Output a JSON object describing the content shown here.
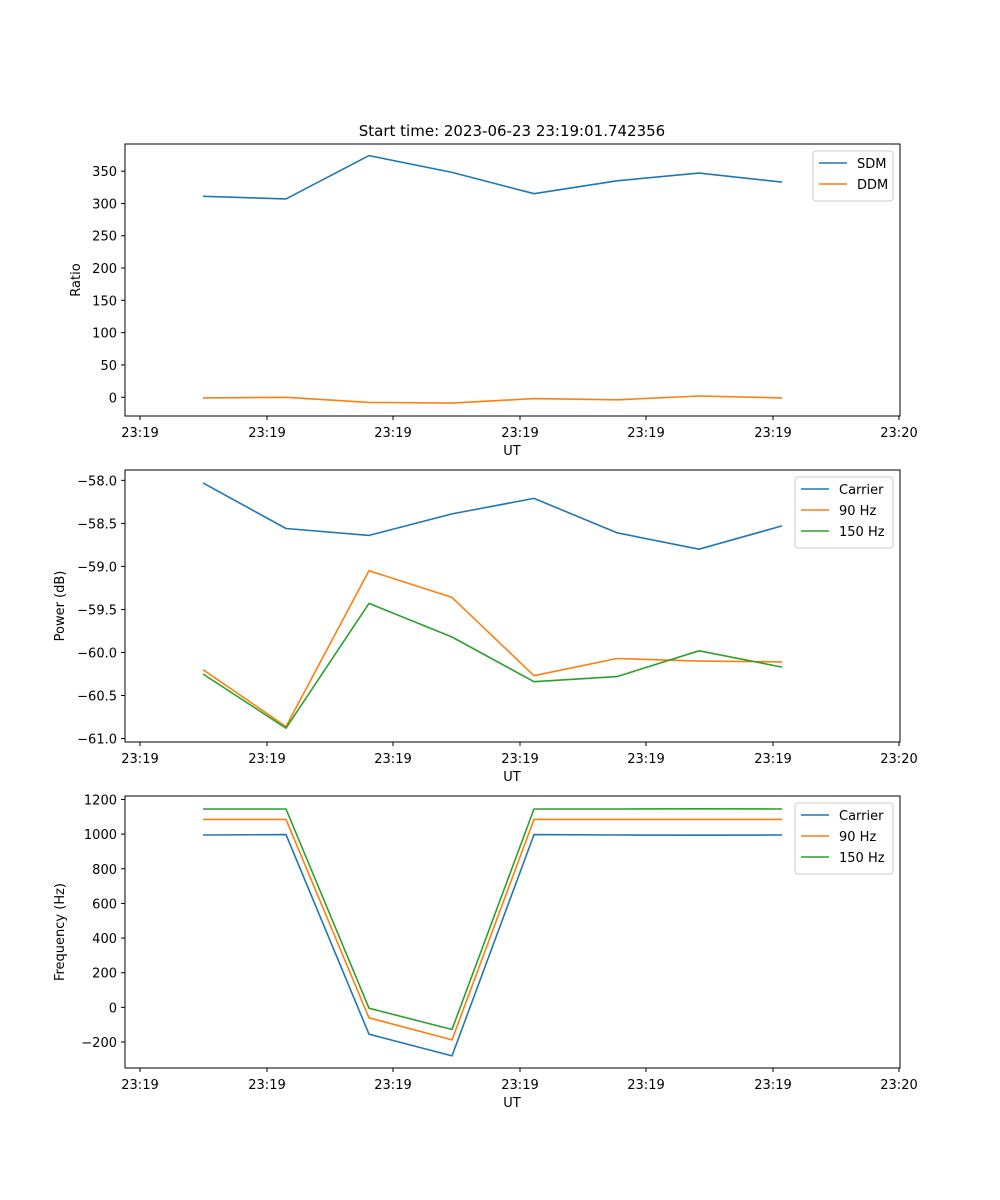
{
  "figure": {
    "title": "Start time: 2023-06-23 23:19:01.742356"
  },
  "chart_data": [
    {
      "type": "line",
      "xlabel": "UT",
      "ylabel": "Ratio",
      "x_ticks": [
        "23:19",
        "23:19",
        "23:19",
        "23:19",
        "23:19",
        "23:19",
        "23:20"
      ],
      "ylim": [
        -29,
        392
      ],
      "yticks": [
        0,
        50,
        100,
        150,
        200,
        250,
        300,
        350
      ],
      "legend": "top-right",
      "series": [
        {
          "name": "SDM",
          "color": "#1f77b4",
          "values": [
            311,
            307,
            374,
            348,
            315,
            335,
            347,
            333
          ]
        },
        {
          "name": "DDM",
          "color": "#ff7f0e",
          "values": [
            -1,
            0,
            -8,
            -9,
            -2,
            -4,
            2,
            -1
          ]
        }
      ]
    },
    {
      "type": "line",
      "xlabel": "UT",
      "ylabel": "Power (dB)",
      "x_ticks": [
        "23:19",
        "23:19",
        "23:19",
        "23:19",
        "23:19",
        "23:19",
        "23:20"
      ],
      "ylim": [
        -61.04,
        -57.88
      ],
      "yticks": [
        -61.0,
        -60.5,
        -60.0,
        -59.5,
        -59.0,
        -58.5,
        -58.0
      ],
      "ytick_labels": [
        "−61.0",
        "−60.5",
        "−60.0",
        "−59.5",
        "−59.0",
        "−58.5",
        "−58.0"
      ],
      "legend": "top-right",
      "series": [
        {
          "name": "Carrier",
          "color": "#1f77b4",
          "values": [
            -58.03,
            -58.56,
            -58.64,
            -58.39,
            -58.21,
            -58.61,
            -58.8,
            -58.53
          ]
        },
        {
          "name": "90 Hz",
          "color": "#ff7f0e",
          "values": [
            -60.2,
            -60.86,
            -59.05,
            -59.36,
            -60.27,
            -60.07,
            -60.1,
            -60.11
          ]
        },
        {
          "name": "150 Hz",
          "color": "#2ca02c",
          "values": [
            -60.25,
            -60.88,
            -59.43,
            -59.82,
            -60.34,
            -60.28,
            -59.98,
            -60.17
          ]
        }
      ]
    },
    {
      "type": "line",
      "xlabel": "UT",
      "ylabel": "Frequency (Hz)",
      "x_ticks": [
        "23:19",
        "23:19",
        "23:19",
        "23:19",
        "23:19",
        "23:19",
        "23:20"
      ],
      "ylim": [
        -350,
        1220
      ],
      "yticks": [
        -200,
        0,
        200,
        400,
        600,
        800,
        1000,
        1200
      ],
      "ytick_labels": [
        "−200",
        "0",
        "200",
        "400",
        "600",
        "800",
        "1000",
        "1200"
      ],
      "legend": "top-right",
      "series": [
        {
          "name": "Carrier",
          "color": "#1f77b4",
          "values": [
            995,
            997,
            -155,
            -280,
            997,
            995,
            994,
            995
          ]
        },
        {
          "name": "90 Hz",
          "color": "#ff7f0e",
          "values": [
            1085,
            1085,
            -60,
            -188,
            1085,
            1085,
            1085,
            1085
          ]
        },
        {
          "name": "150 Hz",
          "color": "#2ca02c",
          "values": [
            1145,
            1145,
            -5,
            -128,
            1145,
            1145,
            1146,
            1145
          ]
        }
      ]
    }
  ]
}
